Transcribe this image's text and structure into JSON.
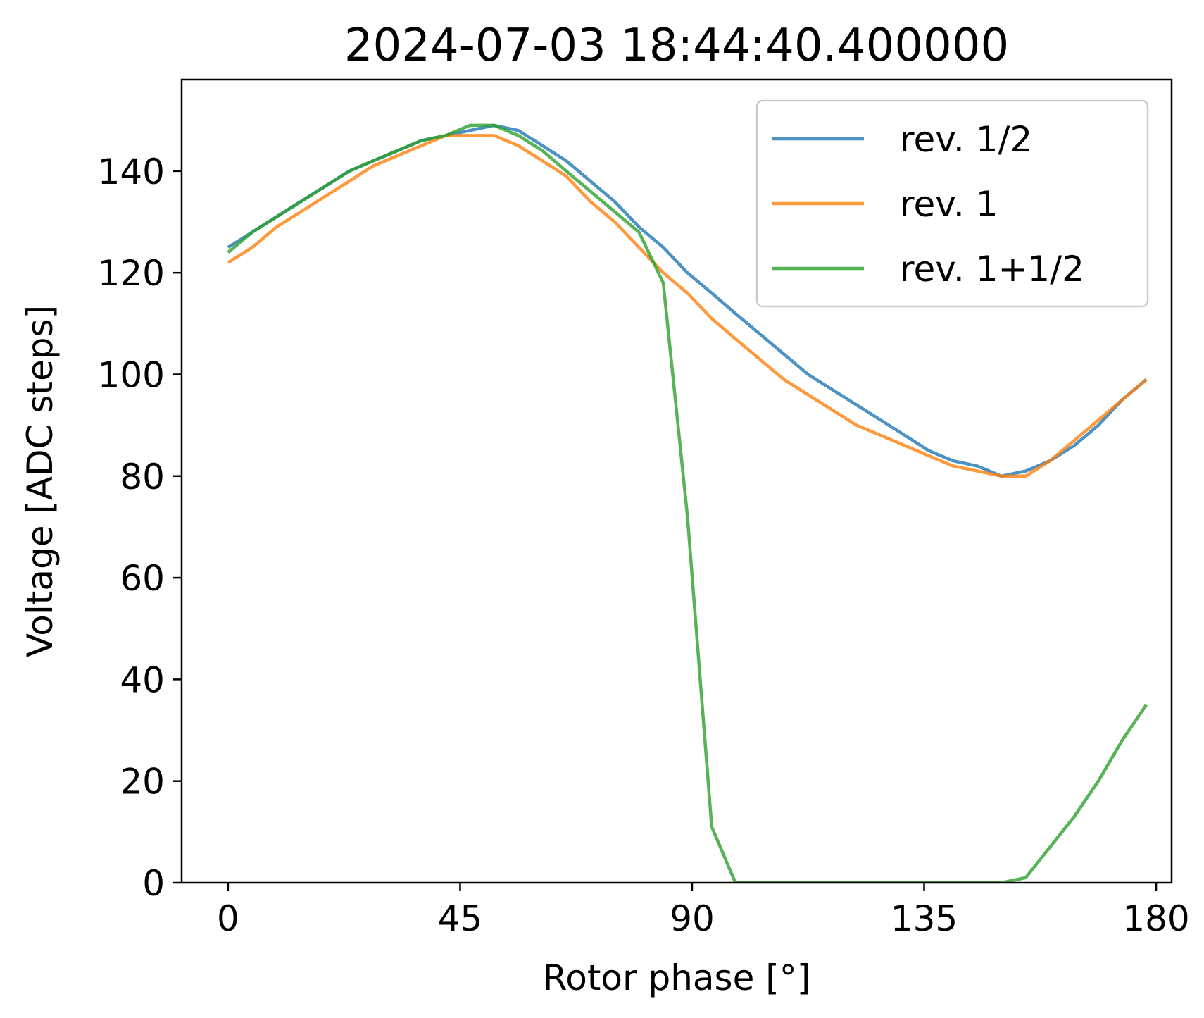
{
  "chart_data": {
    "type": "line",
    "title": "2024-07-03 18:44:40.400000",
    "xlabel": "Rotor phase [°]",
    "ylabel": "Voltage  [ADC steps]",
    "xlim": [
      -9,
      183
    ],
    "ylim": [
      0,
      158
    ],
    "xticks": [
      0,
      45,
      90,
      135,
      180
    ],
    "xtick_labels": [
      "0",
      "45",
      "90",
      "135",
      "180"
    ],
    "yticks": [
      0,
      20,
      40,
      60,
      80,
      100,
      120,
      140
    ],
    "ytick_labels": [
      "0",
      "20",
      "40",
      "60",
      "80",
      "100",
      "120",
      "140"
    ],
    "grid": false,
    "legend_position": "top-right",
    "x": [
      0,
      4.7,
      9.4,
      14.1,
      18.8,
      23.5,
      28.1,
      32.8,
      37.5,
      42.2,
      46.9,
      51.6,
      56.3,
      61.0,
      65.6,
      70.3,
      75.0,
      79.7,
      84.4,
      89.1,
      93.8,
      98.4,
      103.1,
      107.8,
      112.5,
      117.2,
      121.9,
      126.6,
      131.3,
      135.9,
      140.6,
      145.3,
      150.0,
      154.7,
      159.4,
      164.1,
      168.8,
      173.4,
      178.1
    ],
    "series": [
      {
        "name": "rev. 1/2",
        "color": "#1f77b4",
        "values": [
          125,
          128,
          131,
          134,
          137,
          140,
          142,
          144,
          146,
          147,
          148,
          149,
          148,
          145,
          142,
          138,
          134,
          129,
          125,
          120,
          116,
          112,
          108,
          104,
          100,
          97,
          94,
          91,
          88,
          85,
          83,
          82,
          80,
          81,
          83,
          86,
          90,
          95,
          99
        ]
      },
      {
        "name": "rev. 1",
        "color": "#ff7f0e",
        "values": [
          122,
          125,
          129,
          132,
          135,
          138,
          141,
          143,
          145,
          147,
          147,
          147,
          145,
          142,
          139,
          134,
          130,
          125,
          120,
          116,
          111,
          107,
          103,
          99,
          96,
          93,
          90,
          88,
          86,
          84,
          82,
          81,
          80,
          80,
          83,
          87,
          91,
          95,
          99
        ]
      },
      {
        "name": "rev. 1+1/2",
        "color": "#2ca02c",
        "values": [
          124,
          128,
          131,
          134,
          137,
          140,
          142,
          144,
          146,
          147,
          149,
          149,
          147,
          144,
          140,
          136,
          132,
          128,
          118,
          72,
          11,
          0,
          0,
          0,
          0,
          0,
          0,
          0,
          0,
          0,
          0,
          0,
          0,
          1,
          7,
          13,
          20,
          28,
          35
        ]
      }
    ]
  }
}
